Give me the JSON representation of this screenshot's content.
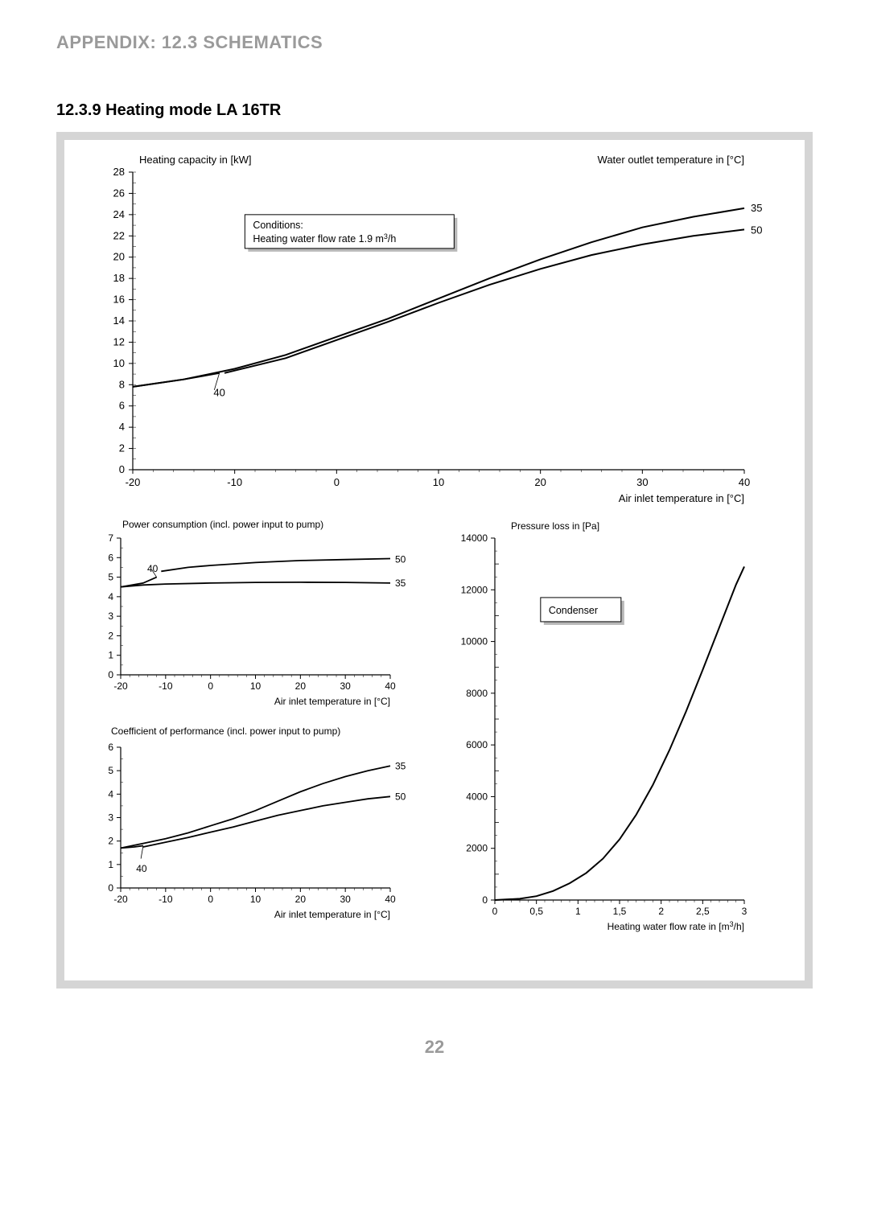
{
  "header": "APPENDIX: 12.3 SCHEMATICS",
  "section_title": "12.3.9 Heating mode LA 16TR",
  "page_number": "22",
  "chart1": {
    "type": "line",
    "title_left": "Heating capacity in [kW]",
    "title_right": "Water outlet temperature in [°C]",
    "x_axis_label": "Air inlet temperature in [°C]",
    "conditions_box": {
      "line1": "Conditions:",
      "line2_pre": "Heating water flow rate 1.9 m",
      "line2_sup": "3",
      "line2_post": "/h"
    },
    "xlim": [
      -20,
      40
    ],
    "ylim": [
      0,
      28
    ],
    "xticks": [
      -20,
      -10,
      0,
      10,
      20,
      30,
      40
    ],
    "yticks": [
      0,
      2,
      4,
      6,
      8,
      10,
      12,
      14,
      16,
      18,
      20,
      22,
      24,
      26,
      28
    ],
    "series": [
      {
        "label": "35",
        "label_x": 40,
        "label_y": 24.6,
        "points": [
          [
            -20,
            7.8
          ],
          [
            -15,
            8.5
          ],
          [
            -10,
            9.5
          ],
          [
            -5,
            10.8
          ],
          [
            0,
            12.5
          ],
          [
            5,
            14.2
          ],
          [
            10,
            16.1
          ],
          [
            15,
            18.0
          ],
          [
            20,
            19.8
          ],
          [
            25,
            21.4
          ],
          [
            30,
            22.8
          ],
          [
            35,
            23.8
          ],
          [
            40,
            24.6
          ]
        ],
        "color": "#000000",
        "width": 2
      },
      {
        "label": "50",
        "label_x": 40,
        "label_y": 22.5,
        "points": [
          [
            -11,
            9.1
          ],
          [
            -5,
            10.5
          ],
          [
            0,
            12.2
          ],
          [
            5,
            13.9
          ],
          [
            10,
            15.7
          ],
          [
            15,
            17.4
          ],
          [
            20,
            18.9
          ],
          [
            25,
            20.2
          ],
          [
            30,
            21.2
          ],
          [
            35,
            22.0
          ],
          [
            40,
            22.6
          ]
        ],
        "color": "#000000",
        "width": 2
      },
      {
        "label": "40",
        "label_x": -11.5,
        "label_y": 8.0,
        "label_side": "below",
        "points": [
          [
            -20,
            7.8
          ],
          [
            -15,
            8.5
          ],
          [
            -11.5,
            9.1
          ]
        ],
        "color": "#000000",
        "width": 2,
        "leader": {
          "from": [
            -11.5,
            9.1
          ],
          "to": [
            -12,
            7.5
          ]
        }
      }
    ],
    "tick_fontsize": 13,
    "axis_fontsize": 13,
    "title_fontsize": 13,
    "bg": "#ffffff",
    "axis_color": "#000000"
  },
  "chart2": {
    "type": "line",
    "title_left": "Power consumption (incl. power input to pump)",
    "x_axis_label": "Air inlet temperature in [°C]",
    "xlim": [
      -20,
      40
    ],
    "ylim": [
      0,
      7
    ],
    "xticks": [
      -20,
      -10,
      0,
      10,
      20,
      30,
      40
    ],
    "yticks": [
      0,
      1,
      2,
      3,
      4,
      5,
      6,
      7
    ],
    "series": [
      {
        "label": "50",
        "label_x": 40,
        "label_y": 5.9,
        "points": [
          [
            -11,
            5.3
          ],
          [
            -5,
            5.5
          ],
          [
            0,
            5.6
          ],
          [
            10,
            5.75
          ],
          [
            20,
            5.85
          ],
          [
            30,
            5.9
          ],
          [
            40,
            5.95
          ]
        ],
        "color": "#000000",
        "width": 1.8
      },
      {
        "label": "40",
        "label_x": -12,
        "label_y": 5.15,
        "label_side": "above",
        "points": [
          [
            -20,
            4.5
          ],
          [
            -15,
            4.7
          ],
          [
            -12,
            5.0
          ]
        ],
        "color": "#000000",
        "width": 1.8,
        "leader": {
          "from": [
            -12,
            5.0
          ],
          "to": [
            -13,
            5.35
          ]
        }
      },
      {
        "label": "35",
        "label_x": 40,
        "label_y": 4.7,
        "points": [
          [
            -20,
            4.5
          ],
          [
            -15,
            4.6
          ],
          [
            -10,
            4.65
          ],
          [
            0,
            4.7
          ],
          [
            10,
            4.73
          ],
          [
            20,
            4.74
          ],
          [
            30,
            4.73
          ],
          [
            40,
            4.7
          ]
        ],
        "color": "#000000",
        "width": 1.8
      }
    ],
    "tick_fontsize": 12,
    "axis_fontsize": 12,
    "title_fontsize": 12,
    "bg": "#ffffff",
    "axis_color": "#000000"
  },
  "chart3": {
    "type": "line",
    "title_left": "Coefficient of performance (incl. power input to pump)",
    "x_axis_label": "Air inlet temperature in [°C]",
    "xlim": [
      -20,
      40
    ],
    "ylim": [
      0,
      6
    ],
    "xticks": [
      -20,
      -10,
      0,
      10,
      20,
      30,
      40
    ],
    "yticks": [
      0,
      1,
      2,
      3,
      4,
      5,
      6
    ],
    "series": [
      {
        "label": "35",
        "label_x": 40,
        "label_y": 5.2,
        "points": [
          [
            -20,
            1.7
          ],
          [
            -15,
            1.9
          ],
          [
            -10,
            2.1
          ],
          [
            -5,
            2.35
          ],
          [
            0,
            2.65
          ],
          [
            5,
            2.95
          ],
          [
            10,
            3.3
          ],
          [
            15,
            3.7
          ],
          [
            20,
            4.1
          ],
          [
            25,
            4.45
          ],
          [
            30,
            4.75
          ],
          [
            35,
            5.0
          ],
          [
            40,
            5.2
          ]
        ],
        "color": "#000000",
        "width": 1.8
      },
      {
        "label": "50",
        "label_x": 40,
        "label_y": 3.9,
        "points": [
          [
            -15,
            1.75
          ],
          [
            -10,
            1.95
          ],
          [
            -5,
            2.15
          ],
          [
            0,
            2.38
          ],
          [
            5,
            2.6
          ],
          [
            10,
            2.85
          ],
          [
            15,
            3.1
          ],
          [
            20,
            3.3
          ],
          [
            25,
            3.5
          ],
          [
            30,
            3.65
          ],
          [
            35,
            3.8
          ],
          [
            40,
            3.9
          ]
        ],
        "color": "#000000",
        "width": 1.8
      },
      {
        "label": "40",
        "label_x": -15,
        "label_y": 1.1,
        "label_side": "below",
        "points": [
          [
            -20,
            1.7
          ],
          [
            -17,
            1.75
          ],
          [
            -15,
            1.8
          ]
        ],
        "color": "#000000",
        "width": 1.8,
        "leader": {
          "from": [
            -15,
            1.8
          ],
          "to": [
            -15.5,
            1.25
          ]
        }
      }
    ],
    "tick_fontsize": 12,
    "axis_fontsize": 12,
    "title_fontsize": 12,
    "bg": "#ffffff",
    "axis_color": "#000000"
  },
  "chart4": {
    "type": "line",
    "title_left": "Pressure loss in [Pa]",
    "x_axis_label_pre": "Heating water flow rate in [m",
    "x_axis_label_sup": "3",
    "x_axis_label_post": "/h]",
    "box_label": "Condenser",
    "xlim": [
      0,
      3
    ],
    "ylim": [
      0,
      14000
    ],
    "xticks": [
      0,
      0.5,
      1,
      1.5,
      2,
      2.5,
      3
    ],
    "xtick_labels": [
      "0",
      "0,5",
      "1",
      "1,5",
      "2",
      "2,5",
      "3"
    ],
    "yticks": [
      0,
      2000,
      4000,
      6000,
      8000,
      10000,
      12000,
      14000
    ],
    "series": [
      {
        "points": [
          [
            0,
            0
          ],
          [
            0.3,
            50
          ],
          [
            0.5,
            150
          ],
          [
            0.7,
            350
          ],
          [
            0.9,
            650
          ],
          [
            1.1,
            1050
          ],
          [
            1.3,
            1600
          ],
          [
            1.5,
            2350
          ],
          [
            1.7,
            3300
          ],
          [
            1.9,
            4450
          ],
          [
            2.1,
            5800
          ],
          [
            2.3,
            7300
          ],
          [
            2.5,
            8900
          ],
          [
            2.7,
            10550
          ],
          [
            2.9,
            12200
          ],
          [
            3.0,
            12900
          ]
        ],
        "color": "#000000",
        "width": 2
      }
    ],
    "tick_fontsize": 12,
    "axis_fontsize": 12,
    "title_fontsize": 12,
    "bg": "#ffffff",
    "axis_color": "#000000"
  }
}
